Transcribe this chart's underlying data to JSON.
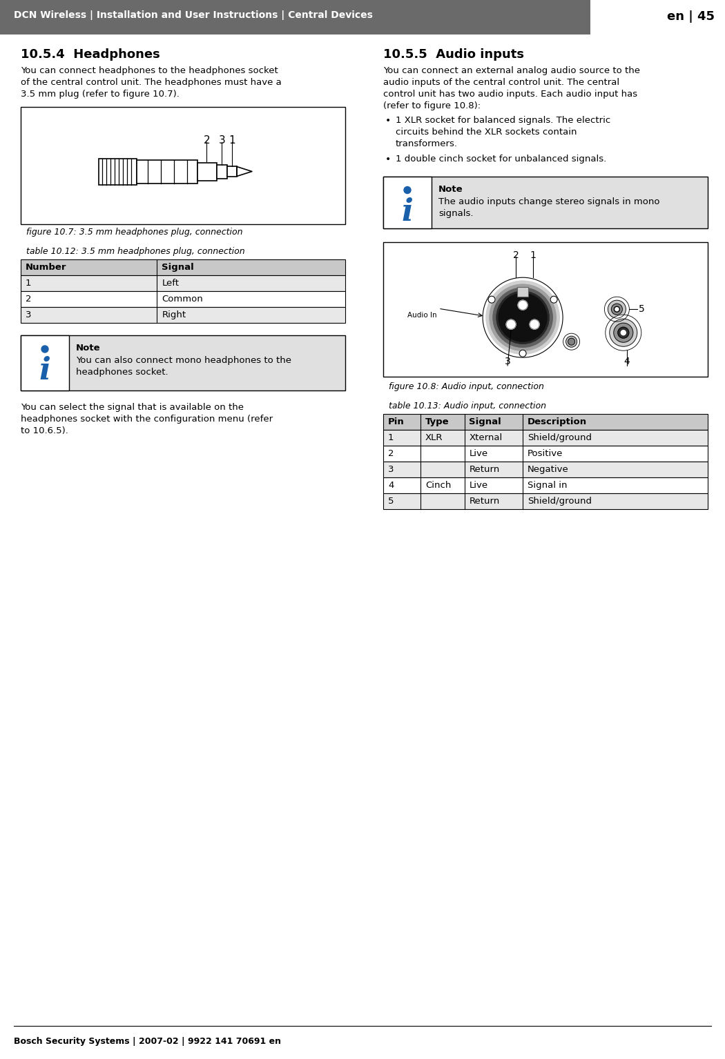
{
  "header_bg": "#6a6a6a",
  "header_text_left": "DCN Wireless | Installation and User Instructions | Central Devices",
  "header_text_right": "en | 45",
  "footer_text": "Bosch Security Systems | 2007-02 | 9922 141 70691 en",
  "section_left_title": "10.5.4  Headphones",
  "section_left_body": "You can connect headphones to the headphones socket\nof the central control unit. The headphones must have a\n3.5 mm plug (refer to figure 10.7).",
  "fig_left_caption": "figure 10.7: 3.5 mm headphones plug, connection",
  "table_left_caption": "table 10.12: 3.5 mm headphones plug, connection",
  "table_left_headers": [
    "Number",
    "Signal"
  ],
  "table_left_rows": [
    [
      "1",
      "Left"
    ],
    [
      "2",
      "Common"
    ],
    [
      "3",
      "Right"
    ]
  ],
  "note_left_title": "Note",
  "note_left_body": "You can also connect mono headphones to the\nheadphones socket.",
  "section_left_body2": "You can select the signal that is available on the\nheadphones socket with the configuration menu (refer\nto 10.6.5).",
  "section_right_title": "10.5.5  Audio inputs",
  "section_right_body": "You can connect an external analog audio source to the\naudio inputs of the central control unit. The central\ncontrol unit has two audio inputs. Each audio input has\n(refer to figure 10.8):",
  "bullet1": "1 XLR socket for balanced signals. The electric\ncircuits behind the XLR sockets contain\ntransformers.",
  "bullet2": "1 double cinch socket for unbalanced signals.",
  "note_right_title": "Note",
  "note_right_body": "The audio inputs change stereo signals in mono\nsignals.",
  "fig_right_caption": "figure 10.8: Audio input, connection",
  "table_right_caption": "table 10.13: Audio input, connection",
  "table_right_headers": [
    "Pin",
    "Type",
    "Signal",
    "Description"
  ],
  "table_right_rows": [
    [
      "1",
      "XLR",
      "Xternal",
      "Shield/ground"
    ],
    [
      "2",
      "",
      "Live",
      "Positive"
    ],
    [
      "3",
      "",
      "Return",
      "Negative"
    ],
    [
      "4",
      "Cinch",
      "Live",
      "Signal in"
    ],
    [
      "5",
      "",
      "Return",
      "Shield/ground"
    ]
  ],
  "bg_color": "#ffffff",
  "table_header_bg": "#c8c8c8",
  "table_row_bg_alt": "#e8e8e8",
  "table_row_bg": "#ffffff",
  "note_bg": "#e0e0e0",
  "note_icon_bg": "#ffffff",
  "border_color": "#000000",
  "blue_color": "#1a5faa"
}
